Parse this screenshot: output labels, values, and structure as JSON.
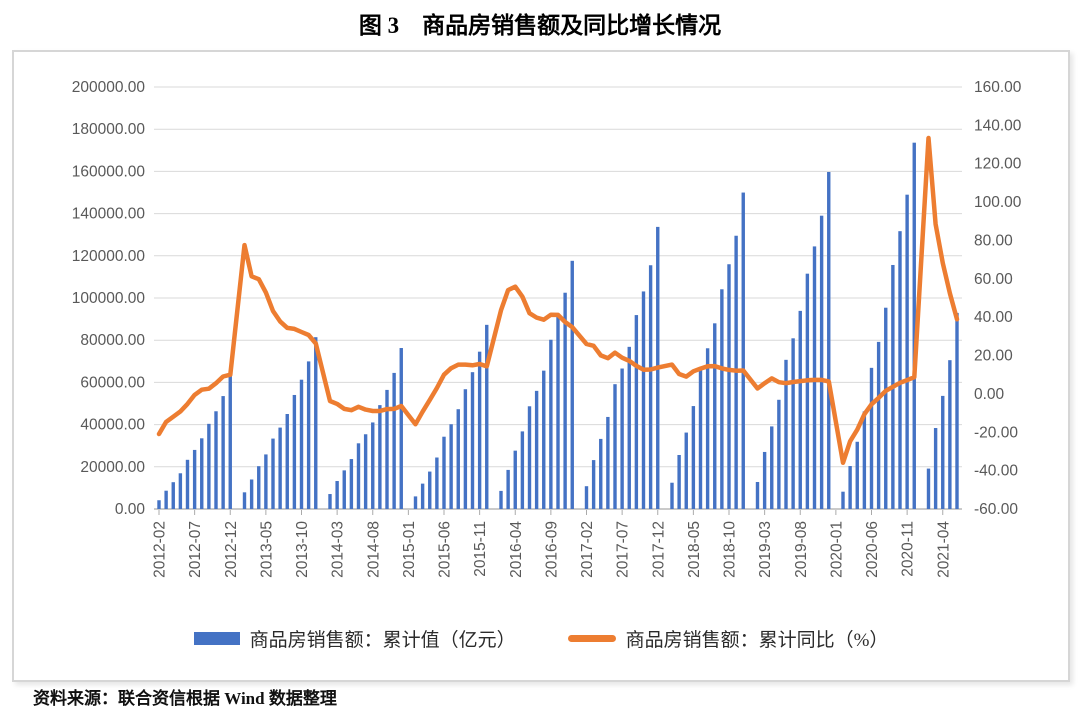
{
  "title": "图 3　商品房销售额及同比增长情况",
  "footer": "资料来源：联合资信根据 Wind 数据整理",
  "legend": {
    "bar_label": "商品房销售额：累计值（亿元）",
    "line_label": "商品房销售额：累计同比（%）"
  },
  "colors": {
    "bar": "#4472C4",
    "line": "#ED7D31",
    "grid": "#D9D9D9",
    "axis_line": "#ABABAB",
    "axis_text": "#595959"
  },
  "chart_data": {
    "type": "combo",
    "title": "图 3　商品房销售额及同比增长情况",
    "grid": true,
    "legend_position": "bottom",
    "x_tick_every": 5,
    "left_axis": {
      "label": "商品房销售额：累计值（亿元）",
      "min": 0,
      "max": 200000,
      "step": 20000,
      "ticks": [
        "200000.00",
        "180000.00",
        "160000.00",
        "140000.00",
        "120000.00",
        "100000.00",
        "80000.00",
        "60000.00",
        "40000.00",
        "20000.00",
        "0.00"
      ]
    },
    "right_axis": {
      "label": "商品房销售额：累计同比（%）",
      "min": -60,
      "max": 160,
      "step": 20,
      "ticks": [
        "160.00",
        "140.00",
        "120.00",
        "100.00",
        "80.00",
        "60.00",
        "40.00",
        "20.00",
        "0.00",
        "-20.00",
        "-40.00",
        "-60.00"
      ]
    },
    "x": [
      "2012-02",
      "2012-03",
      "2012-04",
      "2012-05",
      "2012-06",
      "2012-07",
      "2012-08",
      "2012-09",
      "2012-10",
      "2012-11",
      "2012-12",
      "2013-01",
      "2013-02",
      "2013-03",
      "2013-04",
      "2013-05",
      "2013-06",
      "2013-07",
      "2013-08",
      "2013-09",
      "2013-10",
      "2013-11",
      "2013-12",
      "2014-01",
      "2014-02",
      "2014-03",
      "2014-04",
      "2014-05",
      "2014-06",
      "2014-07",
      "2014-08",
      "2014-09",
      "2014-10",
      "2014-11",
      "2014-12",
      "2015-01",
      "2015-02",
      "2015-03",
      "2015-04",
      "2015-05",
      "2015-06",
      "2015-07",
      "2015-08",
      "2015-09",
      "2015-10",
      "2015-11",
      "2015-12",
      "2016-01",
      "2016-02",
      "2016-03",
      "2016-04",
      "2016-05",
      "2016-06",
      "2016-07",
      "2016-08",
      "2016-09",
      "2016-10",
      "2016-11",
      "2016-12",
      "2017-01",
      "2017-02",
      "2017-03",
      "2017-04",
      "2017-05",
      "2017-06",
      "2017-07",
      "2017-08",
      "2017-09",
      "2017-10",
      "2017-11",
      "2017-12",
      "2018-01",
      "2018-02",
      "2018-03",
      "2018-04",
      "2018-05",
      "2018-06",
      "2018-07",
      "2018-08",
      "2018-09",
      "2018-10",
      "2018-11",
      "2018-12",
      "2019-01",
      "2019-02",
      "2019-03",
      "2019-04",
      "2019-05",
      "2019-06",
      "2019-07",
      "2019-08",
      "2019-09",
      "2019-10",
      "2019-11",
      "2019-12",
      "2020-01",
      "2020-02",
      "2020-03",
      "2020-04",
      "2020-05",
      "2020-06",
      "2020-07",
      "2020-08",
      "2020-09",
      "2020-10",
      "2020-11",
      "2020-12",
      "2021-01",
      "2021-02",
      "2021-03",
      "2021-04",
      "2021-05",
      "2021-06"
    ],
    "series": [
      {
        "name": "商品房销售额：累计值（亿元）",
        "type": "bar",
        "axis": "left",
        "values": [
          4145,
          8674,
          12700,
          16929,
          23314,
          28000,
          33500,
          40359,
          46319,
          53515,
          64456,
          null,
          7905,
          13992,
          20291,
          25868,
          33376,
          38584,
          45024,
          54041,
          61280,
          69954,
          81428,
          null,
          7090,
          13263,
          18307,
          23669,
          31133,
          35420,
          41017,
          49231,
          56439,
          64498,
          76292,
          null,
          5972,
          12023,
          17739,
          24403,
          34259,
          40166,
          47293,
          56764,
          64848,
          74560,
          87281,
          null,
          8577,
          18524,
          27656,
          36775,
          48682,
          55991,
          65575,
          80208,
          91573,
          102503,
          117627,
          null,
          10806,
          23182,
          33223,
          43632,
          59152,
          66577,
          76854,
          91904,
          103111,
          115522,
          133701,
          null,
          12454,
          25597,
          36222,
          48781,
          66945,
          76176,
          87998,
          104132,
          116000,
          129508,
          149973,
          null,
          12803,
          27039,
          39141,
          51757,
          70698,
          80898,
          93894,
          111524,
          124452,
          139006,
          159725,
          null,
          8203,
          20365,
          31863,
          46269,
          66895,
          79199,
          95396,
          115651,
          131671,
          148969,
          173613,
          null,
          19151,
          38378,
          53609,
          70534,
          92931
        ]
      },
      {
        "name": "商品房销售额：累计同比（%）",
        "type": "line",
        "axis": "right",
        "values": [
          -20.9,
          -14.6,
          -11.9,
          -9.1,
          -5.2,
          -0.5,
          2.2,
          2.7,
          5.6,
          9.1,
          10.0,
          null,
          77.6,
          61.3,
          59.8,
          52.8,
          43.2,
          37.8,
          34.4,
          33.9,
          32.3,
          30.7,
          26.3,
          null,
          -3.7,
          -5.2,
          -7.8,
          -8.5,
          -6.7,
          -8.2,
          -8.9,
          -8.9,
          -7.9,
          -7.8,
          -6.3,
          null,
          -15.8,
          -9.3,
          -3.1,
          3.1,
          10.0,
          13.4,
          15.3,
          15.3,
          14.9,
          15.6,
          14.4,
          null,
          43.6,
          54.1,
          55.9,
          50.7,
          42.1,
          39.8,
          38.7,
          41.3,
          41.2,
          37.5,
          34.8,
          null,
          26.0,
          25.1,
          20.1,
          18.6,
          21.5,
          18.9,
          17.2,
          14.6,
          12.6,
          12.7,
          13.7,
          null,
          15.3,
          10.4,
          9.0,
          11.8,
          13.2,
          14.4,
          14.5,
          13.3,
          12.5,
          12.1,
          12.2,
          null,
          2.8,
          5.6,
          8.1,
          6.1,
          5.6,
          6.2,
          6.7,
          7.1,
          7.3,
          7.3,
          6.5,
          null,
          -35.9,
          -24.7,
          -18.6,
          -10.6,
          -5.4,
          -2.1,
          1.6,
          3.7,
          5.8,
          7.2,
          8.7,
          null,
          133.4,
          88.5,
          68.2,
          52.4,
          38.9
        ]
      }
    ]
  }
}
